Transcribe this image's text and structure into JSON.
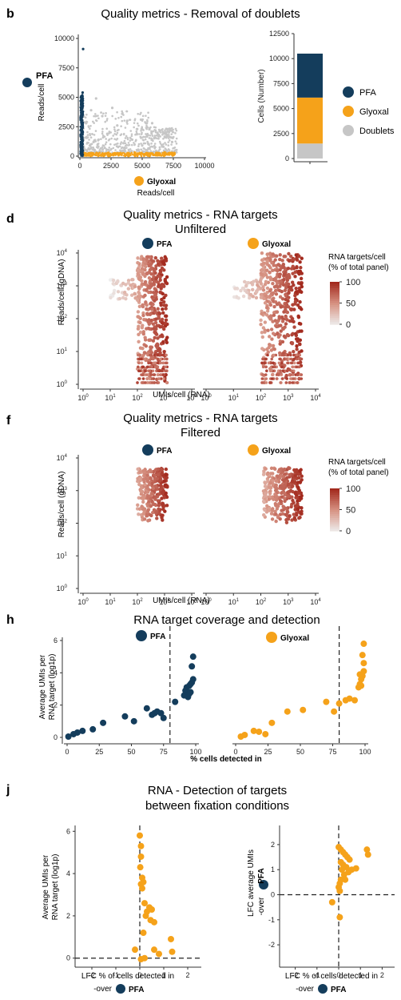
{
  "colors": {
    "pfa": "#143d5c",
    "glyoxal": "#f5a21a",
    "doublets": "#c6c6c6",
    "grad_high": "#a32a1e",
    "grad_mid": "#d79484",
    "grad_low": "#eeeeee"
  },
  "panel_b": {
    "letter": "b",
    "title": "Quality metrics - Removal of doublets",
    "legend": {
      "pfa": "PFA",
      "glyoxal": "Glyoxal",
      "doublets": "Doublets"
    },
    "scatter": {
      "y_label": "Reads/cell",
      "x_label": "Reads/cell"
    }
  },
  "panel_d": {
    "letter": "d",
    "title_line1": "Quality metrics - RNA targets",
    "title_line2": "Unfiltered",
    "pfa": "PFA",
    "glyoxal": "Glyoxal",
    "y_label": "Reads/cell (gDNA)",
    "x_label": "UMIs/cell (RNA)",
    "colorbar_title_line1": "RNA targets/cell",
    "colorbar_title_line2": "(% of total panel)"
  },
  "panel_f": {
    "letter": "f",
    "title_line1": "Quality metrics - RNA targets",
    "title_line2": "Filtered",
    "pfa": "PFA",
    "glyoxal": "Glyoxal",
    "y_label": "Reads/cell (gDNA)",
    "x_label": "UMIs/cell (RNA)",
    "colorbar_title_line1": "RNA targets/cell",
    "colorbar_title_line2": "(% of total panel)"
  },
  "panel_h": {
    "letter": "h",
    "title": "RNA target coverage and detection",
    "pfa": "PFA",
    "glyoxal": "Glyoxal",
    "y_label_line1": "Average UMIs per",
    "y_label_line2": "RNA target (log1p)",
    "x_label": "% cells detected in"
  },
  "panel_j": {
    "letter": "j",
    "title_line1": "RNA - Detection of targets",
    "title_line2": "between fixation conditions",
    "left_y_label_line1": "Average UMIs per",
    "left_y_label_line2": "RNA target (log1p)",
    "right_y_label_line1": "LFC average UMIs",
    "right_y_label_line2": "-over",
    "right_y_label_line3": "PFA",
    "x_label_line1": "LFC % of cells detected in",
    "x_label_line2": "-over",
    "x_label_line3": "PFA"
  },
  "chart_data": [
    {
      "id": "b_scatter",
      "type": "scatter",
      "xlim": [
        0,
        10000
      ],
      "ylim": [
        0,
        10000
      ],
      "x_ticks": [
        0,
        2500,
        5000,
        7500,
        10000
      ],
      "y_ticks": [
        0,
        2500,
        5000,
        7500,
        10000
      ],
      "series": [
        {
          "name": "PFA",
          "points": [
            [
              60,
              200
            ],
            [
              100,
              900
            ],
            [
              120,
              1600
            ],
            [
              140,
              2300
            ],
            [
              150,
              3100
            ],
            [
              160,
              3800
            ],
            [
              180,
              4500
            ],
            [
              200,
              5100
            ],
            [
              220,
              5400
            ],
            [
              260,
              9100
            ],
            [
              90,
              600
            ],
            [
              130,
              2000
            ],
            [
              170,
              4200
            ],
            [
              80,
              300
            ],
            [
              110,
              1200
            ]
          ]
        },
        {
          "name": "Glyoxal",
          "points": [
            [
              700,
              60
            ],
            [
              1500,
              90
            ],
            [
              2300,
              110
            ],
            [
              3200,
              140
            ],
            [
              4000,
              170
            ],
            [
              4800,
              200
            ],
            [
              5600,
              220
            ],
            [
              6300,
              250
            ],
            [
              7100,
              230
            ],
            [
              7600,
              180
            ],
            [
              1000,
              150
            ],
            [
              2800,
              260
            ],
            [
              4400,
              300
            ],
            [
              5900,
              120
            ],
            [
              6800,
              320
            ]
          ]
        },
        {
          "name": "Doublets",
          "points": [
            [
              800,
              900
            ],
            [
              1500,
              1400
            ],
            [
              2200,
              1900
            ],
            [
              3000,
              2600
            ],
            [
              3800,
              3000
            ],
            [
              4600,
              2300
            ],
            [
              5400,
              1700
            ],
            [
              6300,
              1500
            ],
            [
              7000,
              2300
            ],
            [
              500,
              2800
            ],
            [
              900,
              3900
            ],
            [
              1300,
              4900
            ],
            [
              1800,
              3400
            ],
            [
              2600,
              4100
            ],
            [
              3400,
              3600
            ],
            [
              4200,
              1400
            ],
            [
              5000,
              900
            ],
            [
              5800,
              2800
            ],
            [
              6700,
              800
            ],
            [
              7400,
              1200
            ],
            [
              2000,
              700
            ],
            [
              1100,
              1200
            ],
            [
              3500,
              1100
            ],
            [
              6100,
              400
            ],
            [
              4900,
              3100
            ]
          ]
        }
      ]
    },
    {
      "id": "b_bar",
      "type": "bar",
      "ylabel": "Cells (Number)",
      "ylim": [
        0,
        12500
      ],
      "y_ticks": [
        0,
        2500,
        5000,
        7500,
        10000,
        12500
      ],
      "stack_order_bottom_to_top": [
        "Doublets",
        "Glyoxal",
        "PFA"
      ],
      "series": [
        {
          "name": "Doublets",
          "value": 1500
        },
        {
          "name": "Glyoxal",
          "value": 4600
        },
        {
          "name": "PFA",
          "value": 4400
        }
      ]
    },
    {
      "id": "d_pfa",
      "type": "scatter",
      "log_axes": true,
      "xlim_exp": [
        0,
        4
      ],
      "ylim_exp": [
        0,
        4
      ],
      "x_tick_exps": [
        0,
        1,
        2,
        3,
        4
      ],
      "y_tick_exps": [
        0,
        1,
        2,
        3,
        4
      ],
      "colorbar": {
        "min": 0,
        "max": 100,
        "ticks": [
          100,
          50,
          0
        ]
      },
      "clusters": [
        {
          "x_exp_range": [
            2.0,
            3.1
          ],
          "y_exp_range": [
            0.1,
            3.9
          ],
          "value_range": [
            45,
            100
          ],
          "count": 360
        },
        {
          "x_exp_range": [
            1.0,
            2.0
          ],
          "y_exp_range": [
            2.6,
            3.2
          ],
          "value_range": [
            5,
            40
          ],
          "count": 45
        }
      ]
    },
    {
      "id": "d_gly",
      "type": "scatter",
      "log_axes": true,
      "xlim_exp": [
        0,
        4
      ],
      "ylim_exp": [
        0,
        4
      ],
      "x_tick_exps": [
        0,
        1,
        2,
        3,
        4
      ],
      "clusters": [
        {
          "x_exp_range": [
            2.0,
            3.5
          ],
          "y_exp_range": [
            0.1,
            4.0
          ],
          "value_range": [
            45,
            100
          ],
          "count": 420
        },
        {
          "x_exp_range": [
            1.0,
            2.0
          ],
          "y_exp_range": [
            2.6,
            3.2
          ],
          "value_range": [
            5,
            40
          ],
          "count": 45
        }
      ]
    },
    {
      "id": "f_pfa",
      "type": "scatter",
      "log_axes": true,
      "xlim_exp": [
        0,
        4
      ],
      "ylim_exp": [
        0,
        4
      ],
      "x_tick_exps": [
        0,
        1,
        2,
        3,
        4
      ],
      "y_tick_exps": [
        0,
        1,
        2,
        3,
        4
      ],
      "colorbar": {
        "min": 0,
        "max": 100,
        "ticks": [
          100,
          50,
          0
        ]
      },
      "clusters": [
        {
          "x_exp_range": [
            2.0,
            3.1
          ],
          "y_exp_range": [
            2.0,
            3.7
          ],
          "value_range": [
            40,
            100
          ],
          "count": 260
        }
      ]
    },
    {
      "id": "f_gly",
      "type": "scatter",
      "log_axes": true,
      "xlim_exp": [
        0,
        4
      ],
      "ylim_exp": [
        0,
        4
      ],
      "x_tick_exps": [
        0,
        1,
        2,
        3,
        4
      ],
      "clusters": [
        {
          "x_exp_range": [
            2.1,
            3.5
          ],
          "y_exp_range": [
            2.0,
            3.7
          ],
          "value_range": [
            40,
            100
          ],
          "count": 300
        }
      ]
    },
    {
      "id": "h_pfa",
      "type": "scatter",
      "xlim": [
        0,
        100
      ],
      "ylim": [
        0,
        6
      ],
      "x_ticks": [
        0,
        25,
        50,
        75,
        100
      ],
      "y_ticks": [
        0,
        2,
        4,
        6
      ],
      "vline": 80,
      "series": [
        {
          "name": "PFA",
          "points": [
            [
              1,
              0.05
            ],
            [
              5,
              0.2
            ],
            [
              8,
              0.3
            ],
            [
              12,
              0.4
            ],
            [
              20,
              0.5
            ],
            [
              28,
              0.9
            ],
            [
              45,
              1.3
            ],
            [
              52,
              1.0
            ],
            [
              62,
              1.8
            ],
            [
              66,
              1.4
            ],
            [
              68,
              1.5
            ],
            [
              70,
              1.6
            ],
            [
              73,
              1.5
            ],
            [
              75,
              1.2
            ],
            [
              84,
              2.2
            ],
            [
              91,
              2.6
            ],
            [
              92,
              2.9
            ],
            [
              93,
              3.1
            ],
            [
              95,
              3.2
            ],
            [
              96,
              3.3
            ],
            [
              97,
              3.4
            ],
            [
              98,
              3.6
            ],
            [
              94,
              2.5
            ],
            [
              95,
              2.7
            ],
            [
              96,
              2.8
            ],
            [
              97,
              4.4
            ],
            [
              98,
              5.0
            ]
          ]
        }
      ]
    },
    {
      "id": "h_gly",
      "type": "scatter",
      "xlim": [
        0,
        100
      ],
      "ylim": [
        0,
        6
      ],
      "x_ticks": [
        0,
        25,
        50,
        75,
        100
      ],
      "vline": 80,
      "series": [
        {
          "name": "Glyoxal",
          "points": [
            [
              4,
              0.05
            ],
            [
              7,
              0.15
            ],
            [
              14,
              0.4
            ],
            [
              18,
              0.35
            ],
            [
              23,
              0.2
            ],
            [
              28,
              0.9
            ],
            [
              40,
              1.6
            ],
            [
              52,
              1.7
            ],
            [
              70,
              2.2
            ],
            [
              76,
              1.6
            ],
            [
              80,
              2.1
            ],
            [
              85,
              2.3
            ],
            [
              88,
              2.4
            ],
            [
              92,
              2.3
            ],
            [
              95,
              3.1
            ],
            [
              96,
              3.3
            ],
            [
              97,
              3.6
            ],
            [
              98,
              3.8
            ],
            [
              99,
              4.1
            ],
            [
              99,
              4.6
            ],
            [
              98,
              5.1
            ],
            [
              99,
              5.8
            ],
            [
              97,
              3.2
            ],
            [
              96,
              3.9
            ]
          ]
        }
      ]
    },
    {
      "id": "j_left",
      "type": "scatter",
      "xlim": [
        -2.5,
        2.5
      ],
      "ylim": [
        -0.2,
        6.2
      ],
      "x_ticks": [
        -2,
        -1,
        0,
        1,
        2
      ],
      "y_ticks": [
        0,
        2,
        4,
        6
      ],
      "hline": 0,
      "vline": 0,
      "series": [
        {
          "name": "Glyoxal",
          "points": [
            [
              0.0,
              5.8
            ],
            [
              0.05,
              5.3
            ],
            [
              0.05,
              4.8
            ],
            [
              0.02,
              4.3
            ],
            [
              0.1,
              3.8
            ],
            [
              0.15,
              3.6
            ],
            [
              0.05,
              3.5
            ],
            [
              0.1,
              3.3
            ],
            [
              0.2,
              2.6
            ],
            [
              0.4,
              2.4
            ],
            [
              0.3,
              2.2
            ],
            [
              0.5,
              2.3
            ],
            [
              0.25,
              2.0
            ],
            [
              0.45,
              1.8
            ],
            [
              0.6,
              1.7
            ],
            [
              0.15,
              1.2
            ],
            [
              -0.2,
              0.4
            ],
            [
              0.05,
              -0.05
            ],
            [
              0.2,
              0.0
            ],
            [
              0.6,
              0.4
            ],
            [
              0.8,
              0.2
            ],
            [
              1.3,
              0.9
            ],
            [
              1.35,
              0.3
            ]
          ]
        }
      ]
    },
    {
      "id": "j_right",
      "type": "scatter",
      "xlim": [
        -2.5,
        2.5
      ],
      "ylim": [
        -2.7,
        2.7
      ],
      "x_ticks": [
        -2,
        -1,
        0,
        1,
        2
      ],
      "y_ticks": [
        -2,
        -1,
        0,
        1,
        2
      ],
      "hline": 0,
      "vline": 0,
      "series": [
        {
          "name": "Glyoxal",
          "points": [
            [
              0.0,
              1.9
            ],
            [
              0.1,
              1.8
            ],
            [
              0.2,
              1.7
            ],
            [
              0.3,
              1.6
            ],
            [
              0.4,
              1.5
            ],
            [
              0.5,
              1.4
            ],
            [
              0.1,
              1.3
            ],
            [
              0.2,
              1.2
            ],
            [
              0.35,
              1.1
            ],
            [
              0.15,
              1.0
            ],
            [
              0.45,
              0.9
            ],
            [
              0.25,
              0.8
            ],
            [
              0.1,
              0.6
            ],
            [
              0.05,
              0.45
            ],
            [
              0.0,
              0.3
            ],
            [
              0.05,
              0.15
            ],
            [
              -0.3,
              -0.3
            ],
            [
              0.05,
              -0.9
            ],
            [
              0.6,
              1.0
            ],
            [
              0.8,
              1.05
            ],
            [
              1.3,
              1.8
            ],
            [
              1.35,
              1.6
            ],
            [
              0.3,
              0.6
            ]
          ]
        }
      ]
    }
  ]
}
